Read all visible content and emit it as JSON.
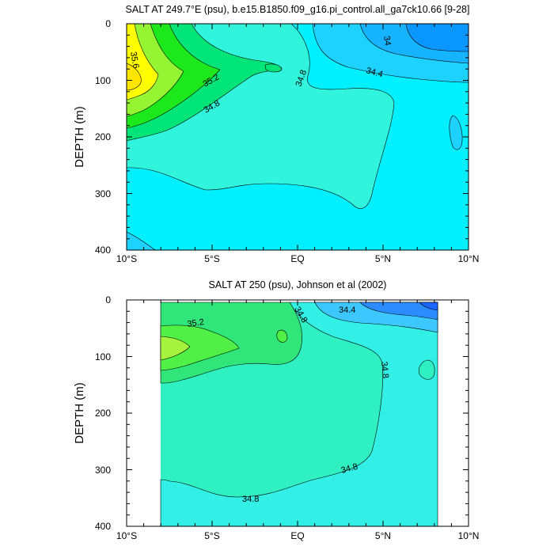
{
  "chart_data": [
    {
      "type": "contour",
      "title": "SALT AT 249.7°E (psu), b.e15.B1850.f09_g16.pi_control.all_ga7ck10.66 [9-28]",
      "xlabel": "",
      "ylabel": "DEPTH (m)",
      "xlim": [
        -10,
        10
      ],
      "ylim": [
        400,
        0
      ],
      "x_ticks": [
        -10,
        -5,
        0,
        5,
        10
      ],
      "x_tick_labels": [
        "10°S",
        "5°S",
        "EQ",
        "5°N",
        "10°N"
      ],
      "y_ticks": [
        0,
        100,
        200,
        300,
        400
      ],
      "y_tick_labels": [
        "0",
        "100",
        "200",
        "300",
        "400"
      ],
      "data_extent": {
        "x": [
          -10,
          10
        ],
        "depth": [
          0,
          400
        ]
      },
      "contour_interval": 0.2,
      "fill_levels": [
        {
          "value": 34.0,
          "color": "#0a96ff"
        },
        {
          "value": 34.2,
          "color": "#16b4ff"
        },
        {
          "value": 34.4,
          "color": "#1ed2ff"
        },
        {
          "value": 34.6,
          "color": "#00f0ff"
        },
        {
          "value": 34.8,
          "color": "#30f5dc"
        },
        {
          "value": 35.0,
          "color": "#00e478"
        },
        {
          "value": 35.2,
          "color": "#1ce81c"
        },
        {
          "value": 35.4,
          "color": "#96f532"
        },
        {
          "value": 35.6,
          "color": "#ffff00"
        },
        {
          "value": 35.8,
          "color": "#ffe600"
        }
      ],
      "contour_labels": [
        {
          "text": "35.6",
          "x": -9.0,
          "depth": 52
        },
        {
          "text": "35.2",
          "x": -4.8,
          "depth": 105
        },
        {
          "text": "34.8",
          "x": -4.9,
          "depth": 142
        },
        {
          "text": "34.8",
          "x": 0.7,
          "depth": 97
        },
        {
          "text": "34.4",
          "x": 4.5,
          "depth": 80
        },
        {
          "text": "34",
          "x": 5.2,
          "depth": 24
        }
      ]
    },
    {
      "type": "contour",
      "title": "SALT AT 250 (psu), Johnson et al (2002)",
      "xlabel": "",
      "ylabel": "DEPTH (m)",
      "xlim": [
        -10,
        10
      ],
      "ylim": [
        400,
        0
      ],
      "x_ticks": [
        -10,
        -5,
        0,
        5,
        10
      ],
      "x_tick_labels": [
        "10°S",
        "5°S",
        "EQ",
        "5°N",
        "10°N"
      ],
      "y_ticks": [
        0,
        100,
        200,
        300,
        400
      ],
      "y_tick_labels": [
        "0",
        "100",
        "200",
        "300",
        "400"
      ],
      "data_extent": {
        "x": [
          -8,
          8.2
        ],
        "depth": [
          5,
          400
        ]
      },
      "contour_interval": 0.2,
      "fill_levels": [
        {
          "value": 34.0,
          "color": "#1a64ff"
        },
        {
          "value": 34.2,
          "color": "#2a8cff"
        },
        {
          "value": 34.4,
          "color": "#3cc8ff"
        },
        {
          "value": 34.6,
          "color": "#32f0e6"
        },
        {
          "value": 34.8,
          "color": "#2ff0c0"
        },
        {
          "value": 35.0,
          "color": "#30e67a"
        },
        {
          "value": 35.2,
          "color": "#50f046"
        },
        {
          "value": 35.4,
          "color": "#a6f23c"
        }
      ],
      "contour_labels": [
        {
          "text": "35.2",
          "x": -4.8,
          "depth": 42
        },
        {
          "text": "34.8",
          "x": 0.2,
          "depth": 18
        },
        {
          "text": "34.4",
          "x": 2.9,
          "depth": 18
        },
        {
          "text": "34.8",
          "x": 4.9,
          "depth": 122
        },
        {
          "text": "34.8",
          "x": 3.1,
          "depth": 296
        },
        {
          "text": "34.8",
          "x": -3.2,
          "depth": 352
        }
      ]
    }
  ]
}
